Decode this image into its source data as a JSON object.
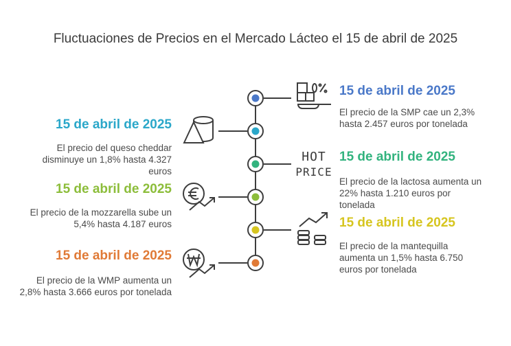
{
  "title": "Fluctuaciones de Precios en el Mercado Lácteo el 15 de abril de 2025",
  "colors": {
    "line": "#3d3d3d",
    "smp": "#4a78c8",
    "cheddar": "#2aa7c9",
    "lactosa": "#32b37e",
    "mozzarella": "#8cbd3a",
    "mantequilla": "#d6c51f",
    "wmp": "#e07a36"
  },
  "events": [
    {
      "id": "smp",
      "side": "right",
      "date": "15 de abril de 2025",
      "text": "El precio de la SMP cae un 2,3% hasta 2.457 euros por tonelada",
      "icon": "scale-percent-icon",
      "color": "#4a78c8"
    },
    {
      "id": "cheddar",
      "side": "left",
      "date": "15 de abril de 2025",
      "text": "El precio del queso cheddar disminuye un 1,8% hasta 4.327 euros",
      "icon": "cheese-icon",
      "color": "#2aa7c9"
    },
    {
      "id": "lactosa",
      "side": "right",
      "date": "15 de abril de 2025",
      "text": "El precio de la lactosa aumenta un 22% hasta 1.210 euros por tonelada",
      "icon": "hot-price-icon",
      "color": "#32b37e"
    },
    {
      "id": "mozzarella",
      "side": "left",
      "date": "15 de abril de 2025",
      "text": "El precio de la mozzarella sube un 5,4% hasta 4.187 euros",
      "icon": "euro-trend-icon",
      "color": "#8cbd3a"
    },
    {
      "id": "mantequilla",
      "side": "right",
      "date": "15 de abril de 2025",
      "text": "El precio de la mantequilla aumenta un 1,5% hasta 6.750 euros por tonelada",
      "icon": "coins-growth-icon",
      "color": "#d6c51f"
    },
    {
      "id": "wmp",
      "side": "left",
      "date": "15 de abril de 2025",
      "text": "El precio de la WMP aumenta un 2,8% hasta 3.666 euros por tonelada",
      "icon": "won-trend-icon",
      "color": "#e07a36"
    }
  ],
  "hot_price": {
    "line1": "HOT",
    "line2": "PRICE"
  }
}
